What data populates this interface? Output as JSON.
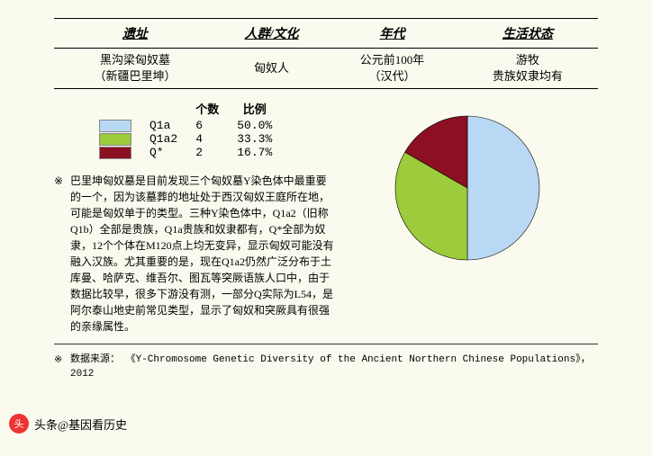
{
  "table": {
    "headers": [
      "遗址",
      "人群/文化",
      "年代",
      "生活状态"
    ],
    "row": {
      "site_line1": "黑沟梁匈奴墓",
      "site_line2": "（新疆巴里坤）",
      "group": "匈奴人",
      "period_line1": "公元前100年",
      "period_line2": "（汉代）",
      "status_line1": "游牧",
      "status_line2": "贵族奴隶均有"
    }
  },
  "data_table": {
    "headers": {
      "count": "个数",
      "ratio": "比例"
    },
    "rows": [
      {
        "label": "Q1a",
        "count": "6",
        "ratio": "50.0%"
      },
      {
        "label": "Q1a2",
        "count": "4",
        "ratio": "33.3%"
      },
      {
        "label": "Q*",
        "count": "2",
        "ratio": "16.7%"
      }
    ]
  },
  "pie": {
    "type": "pie",
    "radius": 80,
    "background_color": "#fafbee",
    "stroke": "#000000",
    "stroke_width": 0.6,
    "slices": [
      {
        "label": "Q1a",
        "value": 6,
        "fraction": 0.5,
        "color": "#b9d8f4"
      },
      {
        "label": "Q1a2",
        "value": 4,
        "fraction": 0.333,
        "color": "#9ccb3b"
      },
      {
        "label": "Q*",
        "value": 2,
        "fraction": 0.167,
        "color": "#8c1022"
      }
    ],
    "start_angle_deg": 90,
    "direction": "clockwise"
  },
  "note_mark": "※",
  "note_text": "巴里坤匈奴墓是目前发现三个匈奴墓Y染色体中最重要的一个，因为该墓葬的地址处于西汉匈奴王庭所在地，可能是匈奴单于的类型。三种Y染色体中，Q1a2（旧称Q1b）全部是贵族，Q1a贵族和奴隶都有，Q*全部为奴隶，12个个体在M120点上均无变异，显示匈奴可能没有融入汉族。尤其重要的是，现在Q1a2仍然广泛分布于土库曼、哈萨克、维吾尔、图瓦等突厥语族人口中，由于数据比较早，很多下游没有测，一部分Q实际为L54，是阿尔泰山地史前常见类型，显示了匈奴和突厥具有很强的亲缘属性。",
  "source_label": "数据来源：",
  "source_text": "《Y-Chromosome Genetic Diversity of the Ancient Northern Chinese Populations》，2012",
  "footer": {
    "logo_char": "头",
    "text": "头条@基因看历史"
  }
}
